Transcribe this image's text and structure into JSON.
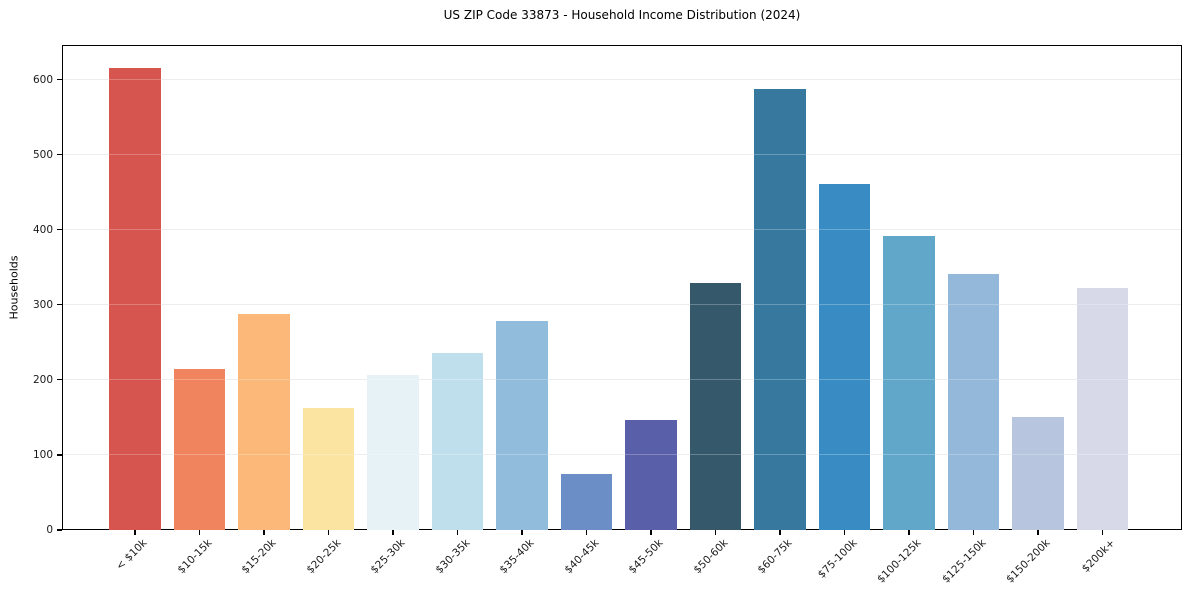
{
  "chart_data": {
    "type": "bar",
    "title": "US ZIP Code 33873 - Household Income Distribution (2024)",
    "xlabel": "",
    "ylabel": "Households",
    "ylim": [
      0,
      646
    ],
    "yticks": [
      0,
      100,
      200,
      300,
      400,
      500,
      600
    ],
    "grid": "horizontal",
    "legend": "none",
    "background_color": "#ffffff",
    "grid_color": "#e7e7e7",
    "axis_color": "#000000",
    "tick_text_color": "#1a1a1a",
    "categories": [
      "< $10k",
      "$10-15k",
      "$15-20k",
      "$20-25k",
      "$25-30k",
      "$30-35k",
      "$35-40k",
      "$40-45k",
      "$45-50k",
      "$50-60k",
      "$60-75k",
      "$75-100k",
      "$100-125k",
      "$125-150k",
      "$150-200k",
      "$200k+"
    ],
    "values": [
      616,
      215,
      288,
      163,
      206,
      236,
      279,
      74,
      146,
      329,
      587,
      461,
      391,
      341,
      150,
      323
    ],
    "bar_colors": [
      "#d6554e",
      "#f0845f",
      "#fcb878",
      "#fbe3a2",
      "#e7f2f7",
      "#c0dfec",
      "#91bcdb",
      "#6a8ec5",
      "#5a5fa9",
      "#35596b",
      "#37789f",
      "#398cc3",
      "#60a7ca",
      "#93b8d9",
      "#b7c5de",
      "#d7d9e8"
    ]
  }
}
